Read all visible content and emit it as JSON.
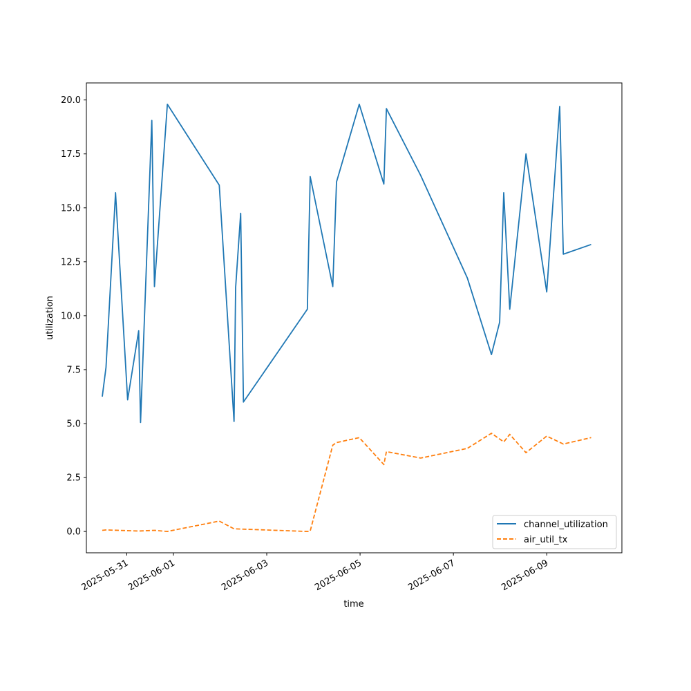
{
  "chart_data": {
    "type": "line",
    "xlabel": "time",
    "ylabel": "utilization",
    "x_type": "datetime",
    "xlim": [
      "2025-05-30T03:14",
      "2025-06-10T14:40"
    ],
    "ylim": [
      -0.99,
      20.79
    ],
    "xticks": [
      "2025-05-31",
      "2025-06-01",
      "2025-06-03",
      "2025-06-05",
      "2025-06-07",
      "2025-06-09"
    ],
    "yticks": [
      0.0,
      2.5,
      5.0,
      7.5,
      10.0,
      12.5,
      15.0,
      17.5,
      20.0
    ],
    "ytick_labels": [
      "0.0",
      "2.5",
      "5.0",
      "7.5",
      "10.0",
      "12.5",
      "15.0",
      "17.5",
      "20.0"
    ],
    "legend": {
      "position": "lower right"
    },
    "grid": false,
    "series": [
      {
        "name": "channel_utilization",
        "color": "#1f77b4",
        "style": "solid",
        "points": [
          [
            "2025-05-30T11:24",
            6.25
          ],
          [
            "2025-05-30T13:20",
            7.6
          ],
          [
            "2025-05-30T18:14",
            15.7
          ],
          [
            "2025-05-31T00:27",
            6.1
          ],
          [
            "2025-05-31T06:09",
            9.3
          ],
          [
            "2025-05-31T07:06",
            5.05
          ],
          [
            "2025-05-31T12:53",
            19.05
          ],
          [
            "2025-05-31T14:14",
            11.35
          ],
          [
            "2025-05-31T20:54",
            19.8
          ],
          [
            "2025-06-01T23:34",
            16.05
          ],
          [
            "2025-06-02T07:10",
            5.1
          ],
          [
            "2025-06-02T08:00",
            11.3
          ],
          [
            "2025-06-02T10:36",
            14.75
          ],
          [
            "2025-06-02T12:00",
            6.0
          ],
          [
            "2025-06-03T20:54",
            10.3
          ],
          [
            "2025-06-03T22:20",
            16.45
          ],
          [
            "2025-06-04T09:58",
            11.35
          ],
          [
            "2025-06-04T11:54",
            16.2
          ],
          [
            "2025-06-04T23:34",
            19.8
          ],
          [
            "2025-06-05T12:14",
            16.1
          ],
          [
            "2025-06-05T13:33",
            19.6
          ],
          [
            "2025-06-06T07:10",
            16.5
          ],
          [
            "2025-06-07T07:10",
            11.75
          ],
          [
            "2025-06-07T19:33",
            8.2
          ],
          [
            "2025-06-07T23:47",
            9.7
          ],
          [
            "2025-06-08T01:53",
            15.7
          ],
          [
            "2025-06-08T05:00",
            10.3
          ],
          [
            "2025-06-08T13:20",
            17.5
          ],
          [
            "2025-06-09T00:00",
            11.1
          ],
          [
            "2025-06-09T06:40",
            19.7
          ],
          [
            "2025-06-09T08:31",
            12.85
          ],
          [
            "2025-06-09T22:52",
            13.3
          ]
        ]
      },
      {
        "name": "air_util_tx",
        "color": "#ff7f0e",
        "style": "dashed",
        "points": [
          [
            "2025-05-30T11:24",
            0.05
          ],
          [
            "2025-05-30T13:20",
            0.07
          ],
          [
            "2025-05-31T06:09",
            0.02
          ],
          [
            "2025-05-31T14:14",
            0.05
          ],
          [
            "2025-05-31T20:54",
            0.0
          ],
          [
            "2025-06-01T23:34",
            0.48
          ],
          [
            "2025-06-02T07:10",
            0.12
          ],
          [
            "2025-06-03T20:54",
            0.0
          ],
          [
            "2025-06-03T22:20",
            0.02
          ],
          [
            "2025-06-04T09:58",
            4.0
          ],
          [
            "2025-06-04T11:54",
            4.12
          ],
          [
            "2025-06-04T23:34",
            4.35
          ],
          [
            "2025-06-05T12:14",
            3.1
          ],
          [
            "2025-06-05T13:33",
            3.7
          ],
          [
            "2025-06-06T07:10",
            3.4
          ],
          [
            "2025-06-07T07:10",
            3.85
          ],
          [
            "2025-06-07T19:33",
            4.55
          ],
          [
            "2025-06-08T01:53",
            4.15
          ],
          [
            "2025-06-08T05:00",
            4.5
          ],
          [
            "2025-06-08T13:20",
            3.65
          ],
          [
            "2025-06-09T00:00",
            4.42
          ],
          [
            "2025-06-09T08:31",
            4.05
          ],
          [
            "2025-06-09T22:52",
            4.35
          ]
        ]
      }
    ]
  }
}
